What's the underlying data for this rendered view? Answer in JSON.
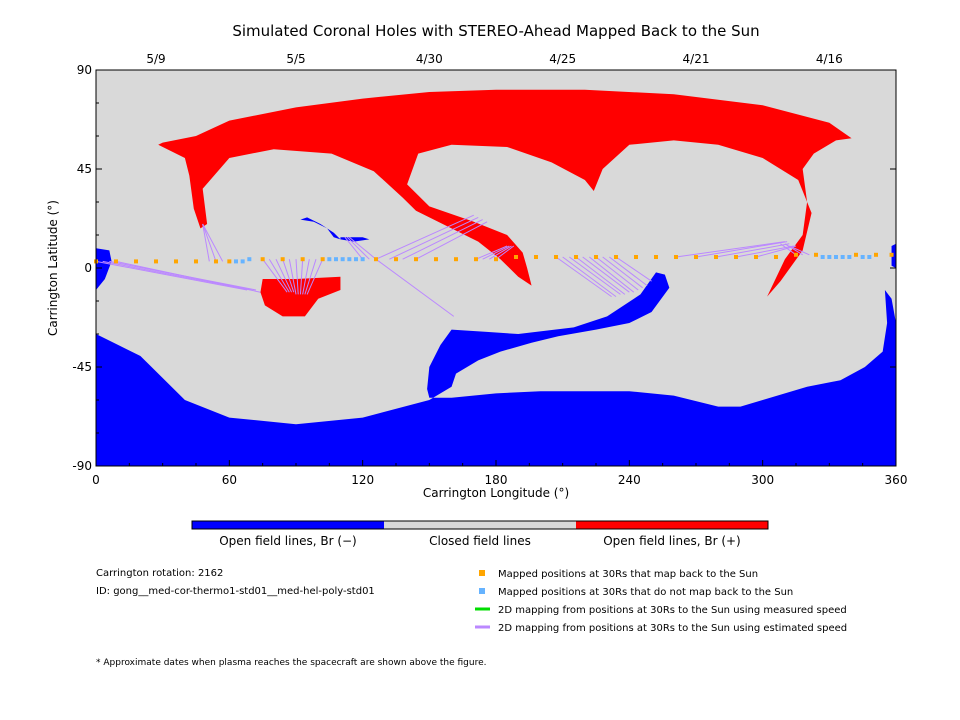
{
  "chart_data": {
    "type": "map",
    "title": "Simulated Coronal Holes with STEREO-Ahead Mapped Back to the Sun",
    "xlabel": "Carrington Longitude (°)",
    "ylabel": "Carrington Latitude (°)",
    "xlim": [
      0,
      360
    ],
    "ylim": [
      -90,
      90
    ],
    "x_ticks": [
      "0",
      "60",
      "120",
      "180",
      "240",
      "300",
      "360"
    ],
    "x_tick_values": [
      0,
      60,
      120,
      180,
      240,
      300,
      360
    ],
    "y_ticks": [
      "90",
      "45",
      "0",
      "-45",
      "-90"
    ],
    "y_tick_values": [
      90,
      45,
      0,
      -45,
      -90
    ],
    "date_ticks": [
      {
        "lon": 27,
        "label": "5/9"
      },
      {
        "lon": 90,
        "label": "5/5"
      },
      {
        "lon": 150,
        "label": "4/30"
      },
      {
        "lon": 210,
        "label": "4/25"
      },
      {
        "lon": 270,
        "label": "4/21"
      },
      {
        "lon": 330,
        "label": "4/16"
      }
    ],
    "colors": {
      "closed": "#d9d9d9",
      "open_negative": "#0000ff",
      "open_positive": "#ff0000",
      "mapped_back": "#ffa500",
      "not_mapped": "#66b3ff",
      "measured_speed": "#00dd00",
      "estimated_speed": "#bb88ff"
    },
    "regions": {
      "positive": [
        {
          "name": "north-polar-coronal-hole",
          "polygon": [
            [
              30,
              57
            ],
            [
              45,
              60
            ],
            [
              60,
              67
            ],
            [
              90,
              73
            ],
            [
              120,
              77
            ],
            [
              150,
              80
            ],
            [
              180,
              81
            ],
            [
              220,
              81
            ],
            [
              260,
              79
            ],
            [
              300,
              74
            ],
            [
              330,
              66
            ],
            [
              340,
              59
            ],
            [
              333,
              58
            ],
            [
              323,
              52
            ],
            [
              318,
              45
            ],
            [
              320,
              30
            ],
            [
              318,
              15
            ],
            [
              310,
              4
            ],
            [
              302,
              -13
            ],
            [
              308,
              -6
            ],
            [
              318,
              8
            ],
            [
              322,
              25
            ],
            [
              316,
              40
            ],
            [
              300,
              50
            ],
            [
              280,
              56
            ],
            [
              260,
              58
            ],
            [
              240,
              56
            ],
            [
              228,
              45
            ],
            [
              224,
              35
            ],
            [
              220,
              40
            ],
            [
              205,
              48
            ],
            [
              185,
              55
            ],
            [
              160,
              56
            ],
            [
              145,
              52
            ],
            [
              140,
              38
            ],
            [
              150,
              28
            ],
            [
              170,
              21
            ],
            [
              185,
              15
            ],
            [
              192,
              7
            ],
            [
              194,
              0
            ],
            [
              196,
              -8
            ],
            [
              190,
              -4
            ],
            [
              182,
              4
            ],
            [
              172,
              12
            ],
            [
              156,
              20
            ],
            [
              144,
              26
            ],
            [
              138,
              32
            ],
            [
              125,
              44
            ],
            [
              106,
              52
            ],
            [
              80,
              54
            ],
            [
              60,
              50
            ],
            [
              48,
              36
            ],
            [
              50,
              20
            ],
            [
              47,
              18
            ],
            [
              44,
              27
            ],
            [
              42,
              42
            ],
            [
              40,
              50
            ],
            [
              28,
              56
            ]
          ]
        },
        {
          "name": "positive-hole-midlatitude",
          "polygon": [
            [
              75,
              -5
            ],
            [
              90,
              -5
            ],
            [
              110,
              -4
            ],
            [
              110,
              -10
            ],
            [
              100,
              -14
            ],
            [
              94,
              -22
            ],
            [
              84,
              -22
            ],
            [
              76,
              -17
            ],
            [
              74,
              -11
            ]
          ]
        }
      ],
      "negative": [
        {
          "name": "south-polar-coronal-hole",
          "polygon": [
            [
              0,
              -90
            ],
            [
              360,
              -90
            ],
            [
              360,
              -25
            ],
            [
              358,
              -14
            ],
            [
              355,
              -10
            ],
            [
              356,
              -25
            ],
            [
              354,
              -38
            ],
            [
              346,
              -45
            ],
            [
              335,
              -51
            ],
            [
              320,
              -54
            ],
            [
              300,
              -60
            ],
            [
              290,
              -63
            ],
            [
              280,
              -63
            ],
            [
              260,
              -58
            ],
            [
              240,
              -56
            ],
            [
              220,
              -56
            ],
            [
              200,
              -56
            ],
            [
              180,
              -57
            ],
            [
              160,
              -59
            ],
            [
              150,
              -59
            ],
            [
              149,
              -55
            ],
            [
              150,
              -45
            ],
            [
              155,
              -35
            ],
            [
              160,
              -28
            ],
            [
              175,
              -29
            ],
            [
              190,
              -30
            ],
            [
              215,
              -27
            ],
            [
              230,
              -22
            ],
            [
              245,
              -12
            ],
            [
              252,
              -2
            ],
            [
              256,
              -3
            ],
            [
              258,
              -9
            ],
            [
              250,
              -20
            ],
            [
              240,
              -25
            ],
            [
              225,
              -28
            ],
            [
              208,
              -31
            ],
            [
              196,
              -34
            ],
            [
              182,
              -38
            ],
            [
              172,
              -42
            ],
            [
              162,
              -48
            ],
            [
              160,
              -54
            ],
            [
              150,
              -60
            ],
            [
              120,
              -68
            ],
            [
              90,
              -71
            ],
            [
              60,
              -68
            ],
            [
              40,
              -60
            ],
            [
              30,
              -50
            ],
            [
              20,
              -40
            ],
            [
              10,
              -35
            ],
            [
              0,
              -30
            ]
          ]
        },
        {
          "name": "negative-hole-west-edge",
          "polygon": [
            [
              0,
              9
            ],
            [
              6,
              8
            ],
            [
              7,
              3
            ],
            [
              4,
              -5
            ],
            [
              0,
              -10
            ]
          ]
        },
        {
          "name": "negative-hole-east-edge",
          "polygon": [
            [
              360,
              11
            ],
            [
              358,
              10
            ],
            [
              358,
              1
            ],
            [
              360,
              0
            ]
          ]
        },
        {
          "name": "negative-hole-small-north",
          "polygon": [
            [
              92,
              22
            ],
            [
              98,
              21
            ],
            [
              104,
              18
            ],
            [
              107,
              14
            ],
            [
              110,
              13
            ],
            [
              107,
              16
            ],
            [
              101,
              20
            ],
            [
              95,
              23
            ]
          ]
        },
        {
          "name": "negative-hole-small-mid",
          "polygon": [
            [
              110,
              14
            ],
            [
              120,
              14
            ],
            [
              123,
              13
            ],
            [
              116,
              12
            ],
            [
              110,
              13
            ]
          ]
        }
      ]
    },
    "mapped_back_points": [
      [
        0,
        3
      ],
      [
        9,
        3
      ],
      [
        18,
        3
      ],
      [
        27,
        3
      ],
      [
        36,
        3
      ],
      [
        45,
        3
      ],
      [
        54,
        3
      ],
      [
        60,
        3
      ],
      [
        75,
        4
      ],
      [
        84,
        4
      ],
      [
        93,
        4
      ],
      [
        102,
        4
      ],
      [
        126,
        4
      ],
      [
        135,
        4
      ],
      [
        144,
        4
      ],
      [
        153,
        4
      ],
      [
        162,
        4
      ],
      [
        171,
        4
      ],
      [
        180,
        4
      ],
      [
        189,
        5
      ],
      [
        198,
        5
      ],
      [
        207,
        5
      ],
      [
        216,
        5
      ],
      [
        225,
        5
      ],
      [
        234,
        5
      ],
      [
        243,
        5
      ],
      [
        252,
        5
      ],
      [
        261,
        5
      ],
      [
        270,
        5
      ],
      [
        279,
        5
      ],
      [
        288,
        5
      ],
      [
        297,
        5
      ],
      [
        306,
        5
      ],
      [
        315,
        6
      ],
      [
        324,
        6
      ],
      [
        342,
        6
      ],
      [
        351,
        6
      ],
      [
        358,
        6
      ]
    ],
    "not_mapped_points": [
      [
        63,
        3
      ],
      [
        66,
        3
      ],
      [
        69,
        4
      ],
      [
        105,
        4
      ],
      [
        108,
        4
      ],
      [
        111,
        4
      ],
      [
        114,
        4
      ],
      [
        117,
        4
      ],
      [
        120,
        4
      ],
      [
        327,
        5
      ],
      [
        330,
        5
      ],
      [
        333,
        5
      ],
      [
        336,
        5
      ],
      [
        339,
        5
      ],
      [
        345,
        5
      ],
      [
        348,
        5
      ]
    ],
    "estimated_speed_lines": [
      [
        [
          0,
          3
        ],
        [
          68,
          -10
        ]
      ],
      [
        [
          3,
          3
        ],
        [
          70,
          -10
        ]
      ],
      [
        [
          6,
          3
        ],
        [
          72,
          -10
        ]
      ],
      [
        [
          9,
          3
        ],
        [
          74,
          -11
        ]
      ],
      [
        [
          51,
          3
        ],
        [
          48,
          20
        ]
      ],
      [
        [
          54,
          3
        ],
        [
          48,
          20
        ]
      ],
      [
        [
          57,
          3
        ],
        [
          48,
          20
        ]
      ],
      [
        [
          75,
          4
        ],
        [
          86,
          -11
        ]
      ],
      [
        [
          78,
          4
        ],
        [
          87,
          -11
        ]
      ],
      [
        [
          81,
          4
        ],
        [
          88,
          -11
        ]
      ],
      [
        [
          84,
          4
        ],
        [
          89,
          -11
        ]
      ],
      [
        [
          87,
          4
        ],
        [
          90,
          -12
        ]
      ],
      [
        [
          90,
          4
        ],
        [
          91,
          -12
        ]
      ],
      [
        [
          93,
          4
        ],
        [
          92,
          -12
        ]
      ],
      [
        [
          96,
          4
        ],
        [
          93,
          -12
        ]
      ],
      [
        [
          99,
          4
        ],
        [
          94,
          -12
        ]
      ],
      [
        [
          102,
          4
        ],
        [
          95,
          -12
        ]
      ],
      [
        [
          120,
          4
        ],
        [
          112,
          14
        ]
      ],
      [
        [
          123,
          4
        ],
        [
          113,
          14
        ]
      ],
      [
        [
          126,
          4
        ],
        [
          114,
          14
        ]
      ],
      [
        [
          126,
          4
        ],
        [
          170,
          24
        ]
      ],
      [
        [
          132,
          4
        ],
        [
          172,
          23
        ]
      ],
      [
        [
          138,
          4
        ],
        [
          174,
          22
        ]
      ],
      [
        [
          144,
          4
        ],
        [
          176,
          21
        ]
      ],
      [
        [
          126,
          4
        ],
        [
          161,
          -22
        ]
      ],
      [
        [
          171,
          4
        ],
        [
          185,
          10
        ]
      ],
      [
        [
          174,
          4
        ],
        [
          186,
          10
        ]
      ],
      [
        [
          177,
          4
        ],
        [
          187,
          10
        ]
      ],
      [
        [
          180,
          4
        ],
        [
          188,
          10
        ]
      ],
      [
        [
          207,
          5
        ],
        [
          232,
          -13
        ]
      ],
      [
        [
          210,
          5
        ],
        [
          234,
          -13
        ]
      ],
      [
        [
          213,
          5
        ],
        [
          236,
          -12
        ]
      ],
      [
        [
          216,
          5
        ],
        [
          238,
          -12
        ]
      ],
      [
        [
          219,
          5
        ],
        [
          240,
          -11
        ]
      ],
      [
        [
          222,
          5
        ],
        [
          242,
          -11
        ]
      ],
      [
        [
          225,
          5
        ],
        [
          244,
          -10
        ]
      ],
      [
        [
          228,
          5
        ],
        [
          246,
          -9
        ]
      ],
      [
        [
          231,
          5
        ],
        [
          248,
          -8
        ]
      ],
      [
        [
          234,
          5
        ],
        [
          250,
          -6
        ]
      ],
      [
        [
          261,
          5
        ],
        [
          310,
          12
        ]
      ],
      [
        [
          270,
          5
        ],
        [
          311,
          12
        ]
      ],
      [
        [
          279,
          5
        ],
        [
          312,
          11
        ]
      ],
      [
        [
          288,
          5
        ],
        [
          314,
          10
        ]
      ],
      [
        [
          297,
          5
        ],
        [
          315,
          10
        ]
      ],
      [
        [
          315,
          6
        ],
        [
          308,
          11
        ]
      ],
      [
        [
          318,
          6
        ],
        [
          310,
          11
        ]
      ],
      [
        [
          321,
          6
        ],
        [
          312,
          10
        ]
      ]
    ]
  },
  "colorbar": {
    "labels": [
      "Open field lines, Br (−)",
      "Closed field lines",
      "Open field lines, Br (+)"
    ]
  },
  "info": {
    "rotation": "Carrington rotation: 2162",
    "id": "ID: gong__med-cor-thermo1-std01__med-hel-poly-std01"
  },
  "legend": [
    {
      "kind": "square",
      "color": "#ffa500",
      "label": "Mapped positions at 30Rs that map back to the Sun"
    },
    {
      "kind": "square",
      "color": "#66b3ff",
      "label": "Mapped positions at 30Rs that do not map back to the Sun"
    },
    {
      "kind": "line",
      "color": "#00dd00",
      "label": "2D mapping from positions at 30Rs to the Sun using measured speed"
    },
    {
      "kind": "line",
      "color": "#bb88ff",
      "label": "2D mapping from positions at 30Rs to the Sun using estimated speed"
    }
  ],
  "footnote": "* Approximate dates when plasma reaches the spacecraft are shown above the figure."
}
